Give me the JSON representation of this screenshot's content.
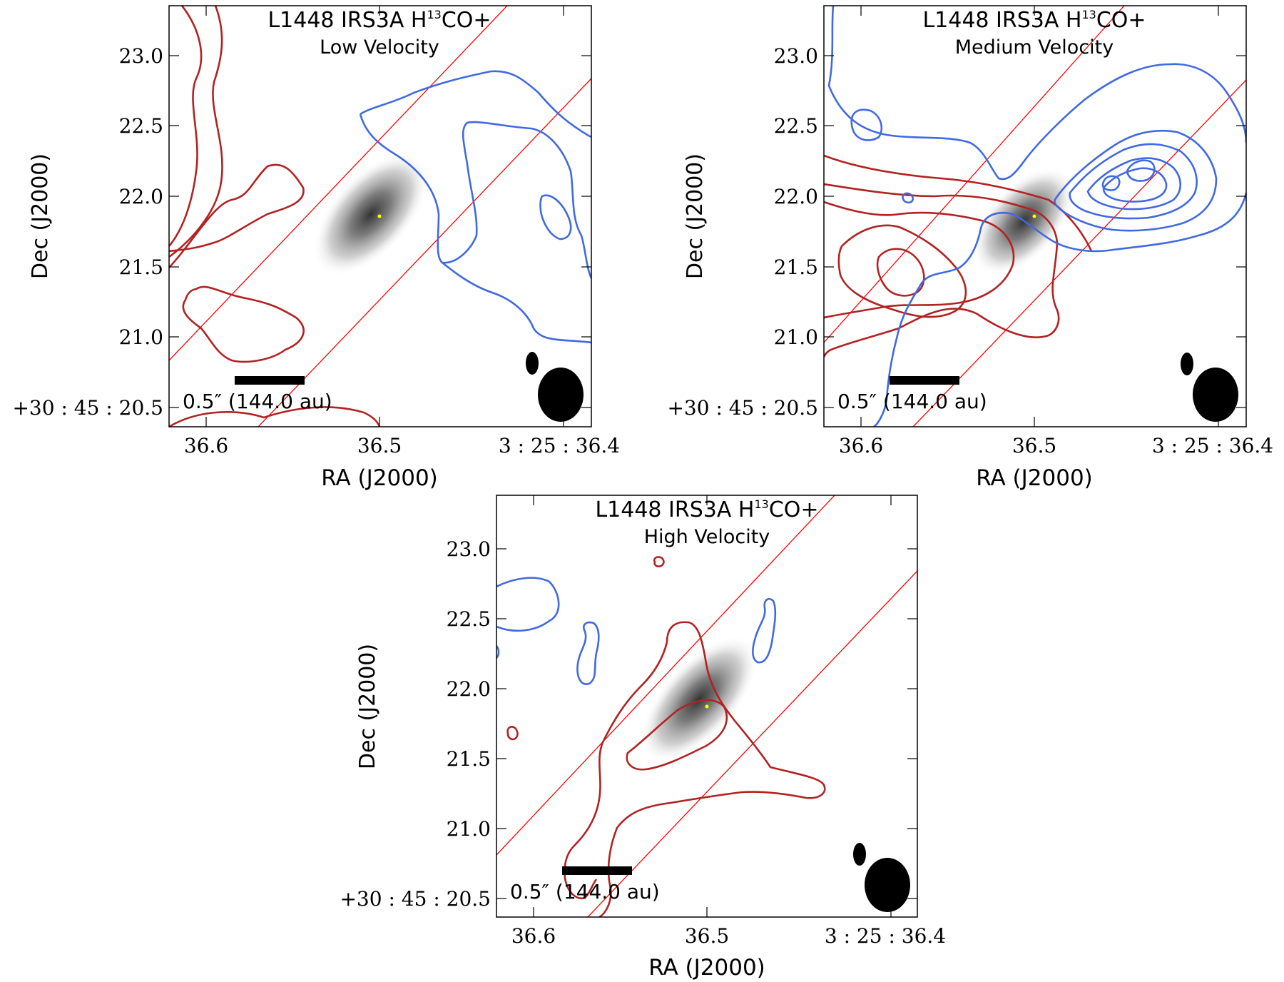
{
  "figure": {
    "panels": [
      {
        "id": "low",
        "title": "L1448 IRS3A H",
        "title_sup": "13",
        "title_tail": "CO+",
        "subtitle": "Low Velocity",
        "xlabel": "RA (J2000)",
        "ylabel": "Dec (J2000)",
        "xticks": [
          "36.6",
          "36.5",
          "3 : 25 : 36.4"
        ],
        "yticks": [
          "23.0",
          "22.5",
          "22.0",
          "21.5",
          "21.0",
          "+30 : 45 : 20.5"
        ],
        "scalebar_label": "0.5″ (144.0 au)"
      },
      {
        "id": "medium",
        "title": "L1448 IRS3A H",
        "title_sup": "13",
        "title_tail": "CO+",
        "subtitle": "Medium Velocity",
        "xlabel": "RA (J2000)",
        "ylabel": "Dec (J2000)",
        "xticks": [
          "36.6",
          "36.5",
          "3 : 25 : 36.4"
        ],
        "yticks": [
          "23.0",
          "22.5",
          "22.0",
          "21.5",
          "21.0",
          "+30 : 45 : 20.5"
        ],
        "scalebar_label": "0.5″ (144.0 au)"
      },
      {
        "id": "high",
        "title": "L1448 IRS3A H",
        "title_sup": "13",
        "title_tail": "CO+",
        "subtitle": "High Velocity",
        "xlabel": "RA (J2000)",
        "ylabel": "Dec (J2000)",
        "xticks": [
          "36.6",
          "36.5",
          "3 : 25 : 36.4"
        ],
        "yticks": [
          "23.0",
          "22.5",
          "22.0",
          "21.5",
          "21.0",
          "+30 : 45 : 20.5"
        ],
        "scalebar_label": "0.5″ (144.0 au)"
      }
    ]
  },
  "colors": {
    "redshifted": "#b22222",
    "blueshifted": "#4169e1",
    "outflow_lines": "#ff0000",
    "source_marker": "#ffff00",
    "beam": "#000000"
  },
  "chart_data": [
    {
      "type": "contour",
      "title": "L1448 IRS3A H13CO+",
      "subtitle": "Low Velocity",
      "xlabel": "RA (J2000)",
      "ylabel": "Dec (J2000)",
      "x_tick_labels": [
        "36.6",
        "36.5",
        "3:25:36.4"
      ],
      "y_tick_labels": [
        "23.0",
        "22.5",
        "22.0",
        "21.5",
        "21.0",
        "+30:45:20.5"
      ],
      "xlim_seconds": [
        36.622,
        36.385
      ],
      "ylim_arcsec": [
        20.4,
        23.4
      ],
      "source_position": {
        "ra_s": 36.499,
        "dec_arcsec": 21.87
      },
      "contours": {
        "red_levels": 2,
        "blue_levels": 1
      },
      "scalebar": "0.5″ (144.0 au)"
    },
    {
      "type": "contour",
      "title": "L1448 IRS3A H13CO+",
      "subtitle": "Medium Velocity",
      "xlabel": "RA (J2000)",
      "ylabel": "Dec (J2000)",
      "x_tick_labels": [
        "36.6",
        "36.5",
        "3:25:36.4"
      ],
      "y_tick_labels": [
        "23.0",
        "22.5",
        "22.0",
        "21.5",
        "21.0",
        "+30:45:20.5"
      ],
      "xlim_seconds": [
        36.622,
        36.385
      ],
      "ylim_arcsec": [
        20.4,
        23.4
      ],
      "source_position": {
        "ra_s": 36.499,
        "dec_arcsec": 21.87
      },
      "contours": {
        "red_levels": 5,
        "blue_levels": 6
      },
      "scalebar": "0.5″ (144.0 au)"
    },
    {
      "type": "contour",
      "title": "L1448 IRS3A H13CO+",
      "subtitle": "High Velocity",
      "xlabel": "RA (J2000)",
      "ylabel": "Dec (J2000)",
      "x_tick_labels": [
        "36.6",
        "36.5",
        "3:25:36.4"
      ],
      "y_tick_labels": [
        "23.0",
        "22.5",
        "22.0",
        "21.5",
        "21.0",
        "+30:45:20.5"
      ],
      "xlim_seconds": [
        36.622,
        36.385
      ],
      "ylim_arcsec": [
        20.4,
        23.4
      ],
      "source_position": {
        "ra_s": 36.499,
        "dec_arcsec": 21.87
      },
      "contours": {
        "red_levels": 2,
        "blue_levels": 1
      },
      "scalebar": "0.5″ (144.0 au)"
    }
  ]
}
